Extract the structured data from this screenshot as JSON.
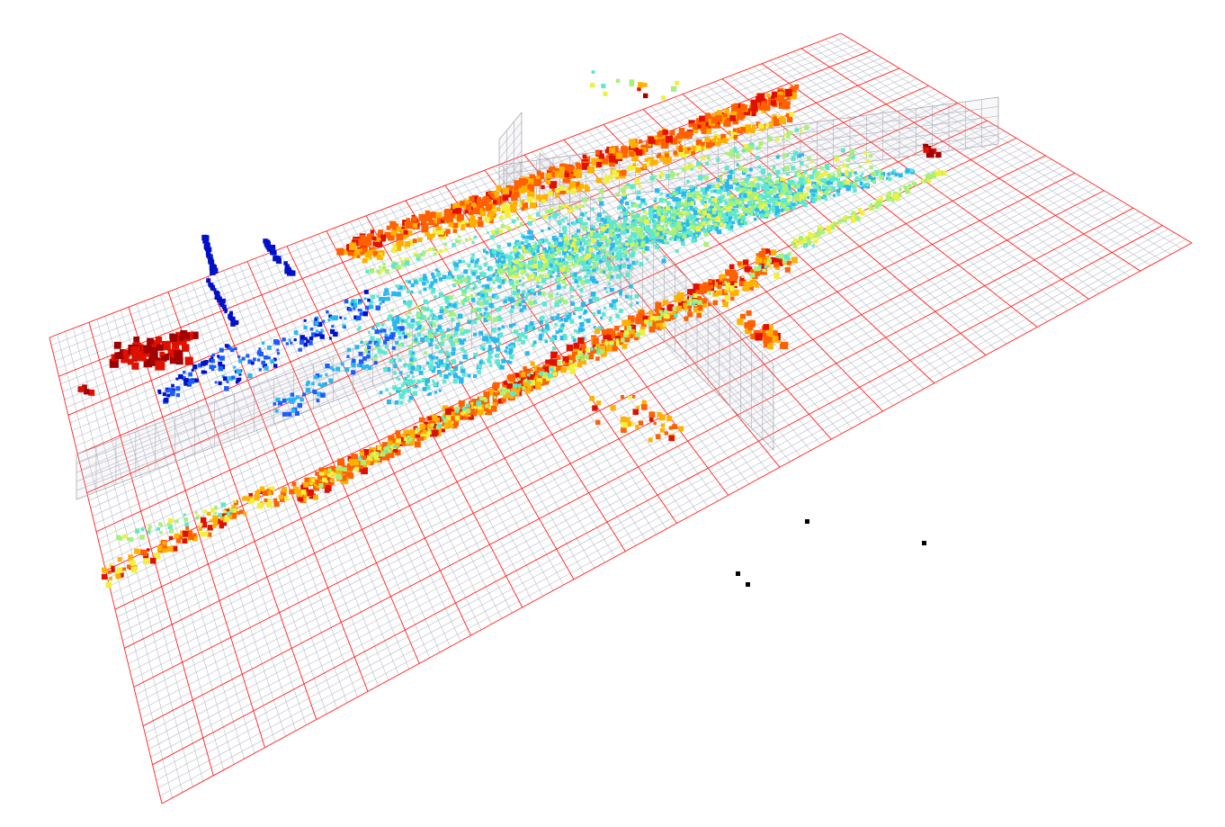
{
  "viewer": {
    "background": "#ffffff",
    "grid": {
      "major_color": "#ff2020",
      "minor_color": "#b8bcc8",
      "visible": true
    },
    "point_cloud": {
      "colormap": "jet",
      "colormap_stops": [
        "#0010c8",
        "#1a5cff",
        "#28b8f0",
        "#5ce8d0",
        "#a8f078",
        "#f0f040",
        "#ffb000",
        "#ff6000",
        "#e01000",
        "#a00000"
      ]
    },
    "voxel_boundary_color": "#a0a0a8",
    "outlier_point_color": "#000000"
  }
}
